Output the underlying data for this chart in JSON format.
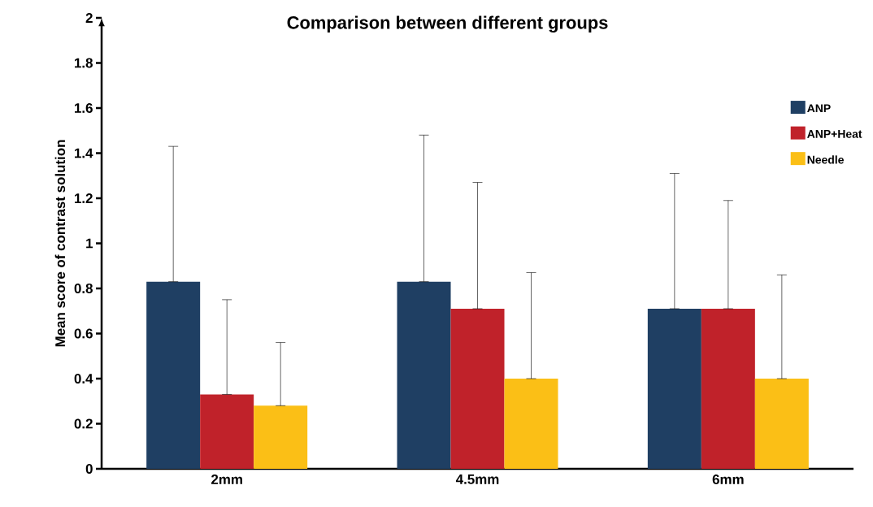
{
  "chart_data": {
    "type": "bar",
    "title": "Comparison between different groups",
    "ylabel": "Mean score of contrast solution",
    "categories": [
      "2mm",
      "4.5mm",
      "6mm"
    ],
    "series": [
      {
        "name": "ANP",
        "color": "#1f3f63",
        "values": [
          0.83,
          0.83,
          0.71
        ],
        "errors": [
          [
            0.83,
            1.43
          ],
          [
            0.83,
            1.48
          ],
          [
            0.71,
            1.31
          ]
        ]
      },
      {
        "name": "ANP+Heat",
        "color": "#c0222a",
        "values": [
          0.33,
          0.71,
          0.71
        ],
        "errors": [
          [
            0.33,
            0.75
          ],
          [
            0.71,
            1.27
          ],
          [
            0.71,
            1.19
          ]
        ]
      },
      {
        "name": "Needle",
        "color": "#fbbf16",
        "values": [
          0.28,
          0.4,
          0.4
        ],
        "errors": [
          [
            0.28,
            0.56
          ],
          [
            0.4,
            0.87
          ],
          [
            0.4,
            0.86
          ]
        ]
      }
    ],
    "ylim": [
      0,
      2
    ],
    "yticks": [
      0,
      0.2,
      0.4,
      0.6,
      0.8,
      1,
      1.2,
      1.4,
      1.6,
      1.8,
      2
    ],
    "grid": false,
    "legend": "top right"
  }
}
